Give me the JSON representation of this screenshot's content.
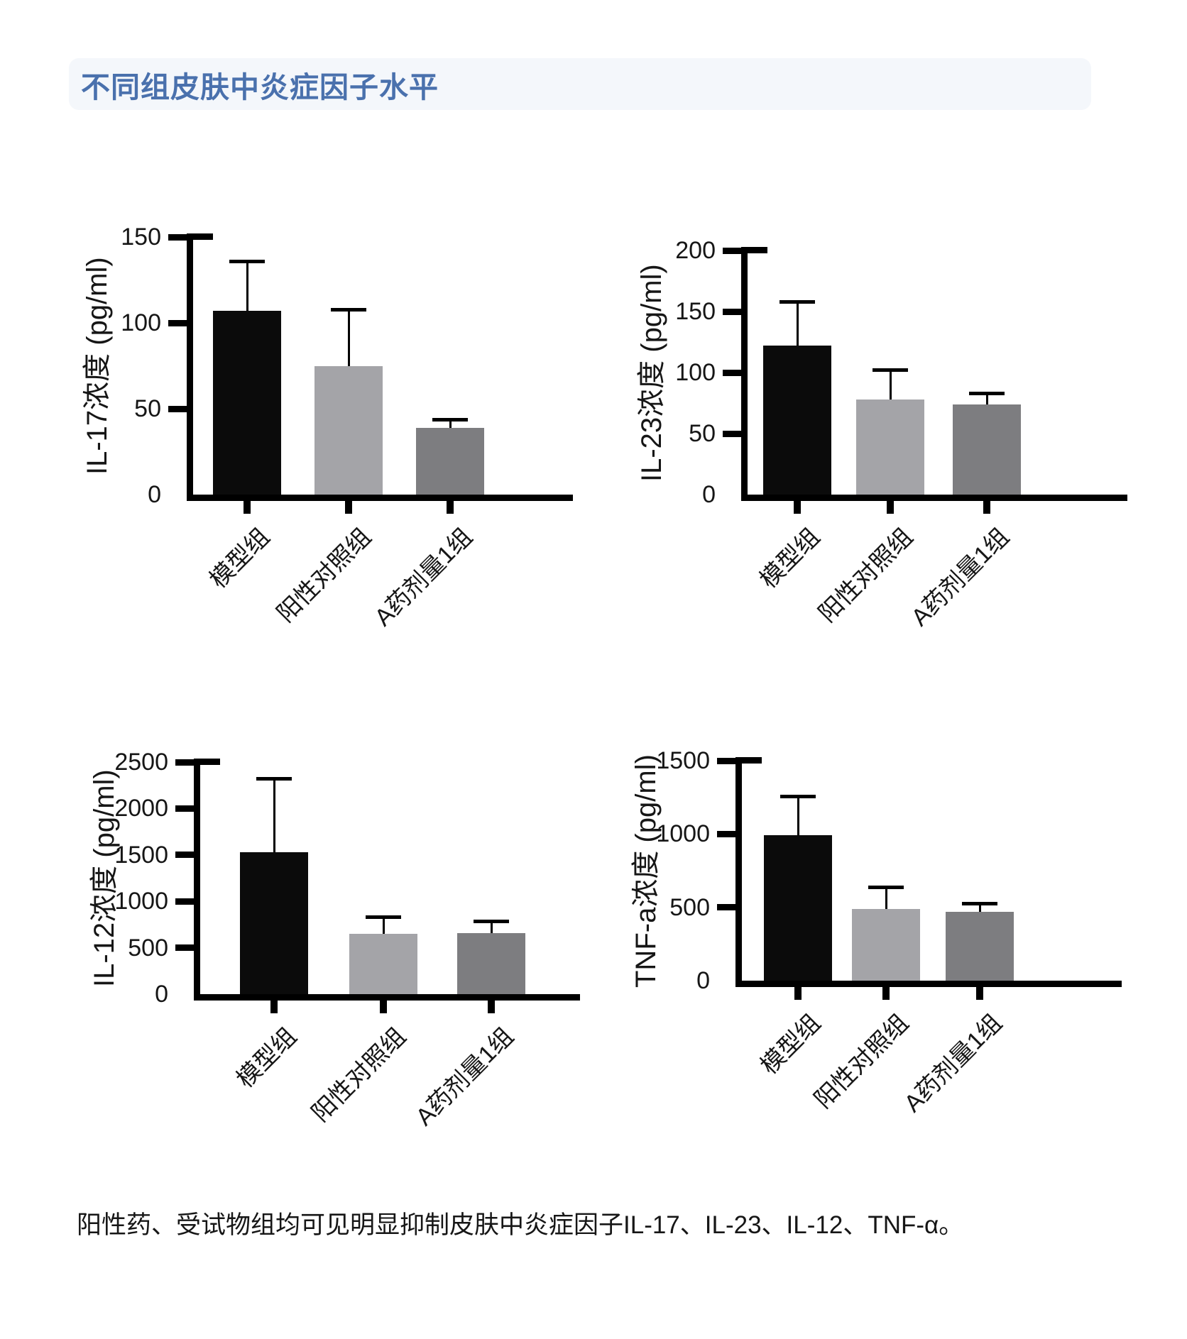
{
  "page": {
    "title": "不同组皮肤中炎症因子水平",
    "caption": "阳性药、受试物组均可见明显抑制皮肤中炎症因子IL-17、IL-23、IL-12、TNF-α。"
  },
  "style": {
    "title_color": "#4a71ad",
    "banner_bg": "#f4f7fb",
    "axis_color": "#000000",
    "bar_colors": [
      "#0b0b0b",
      "#a4a4a8",
      "#7d7d80"
    ]
  },
  "chart_data": [
    {
      "type": "bar",
      "ylabel": "IL-17浓度 (pg/ml)",
      "xlabel": "",
      "categories": [
        "模型组",
        "阳性对照组",
        "A药剂量1组"
      ],
      "values": [
        107,
        75,
        39
      ],
      "errors_plus": [
        28,
        32,
        4
      ],
      "ylim": [
        0,
        150
      ],
      "ytick_interval": 50,
      "grid": false,
      "legend": "none"
    },
    {
      "type": "bar",
      "ylabel": "IL-23浓度 (pg/ml)",
      "xlabel": "",
      "categories": [
        "模型组",
        "阳性对照组",
        "A药剂量1组"
      ],
      "values": [
        122,
        78,
        74
      ],
      "errors_plus": [
        35,
        23,
        8
      ],
      "ylim": [
        0,
        200
      ],
      "ytick_interval": 50,
      "grid": false,
      "legend": "none"
    },
    {
      "type": "bar",
      "ylabel": "IL-12浓度 (pg/ml)",
      "xlabel": "",
      "categories": [
        "模型组",
        "阳性对照组",
        "A药剂量1组"
      ],
      "values": [
        1530,
        650,
        660
      ],
      "errors_plus": [
        780,
        170,
        110
      ],
      "ylim": [
        0,
        2500
      ],
      "ytick_interval": 500,
      "grid": false,
      "legend": "none"
    },
    {
      "type": "bar",
      "ylabel": "TNF-a浓度 (pg/ml)",
      "xlabel": "",
      "categories": [
        "模型组",
        "阳性对照组",
        "A药剂量1组"
      ],
      "values": [
        990,
        490,
        470
      ],
      "errors_plus": [
        260,
        140,
        50
      ],
      "ylim": [
        0,
        1500
      ],
      "ytick_interval": 500,
      "grid": false,
      "legend": "none"
    }
  ]
}
